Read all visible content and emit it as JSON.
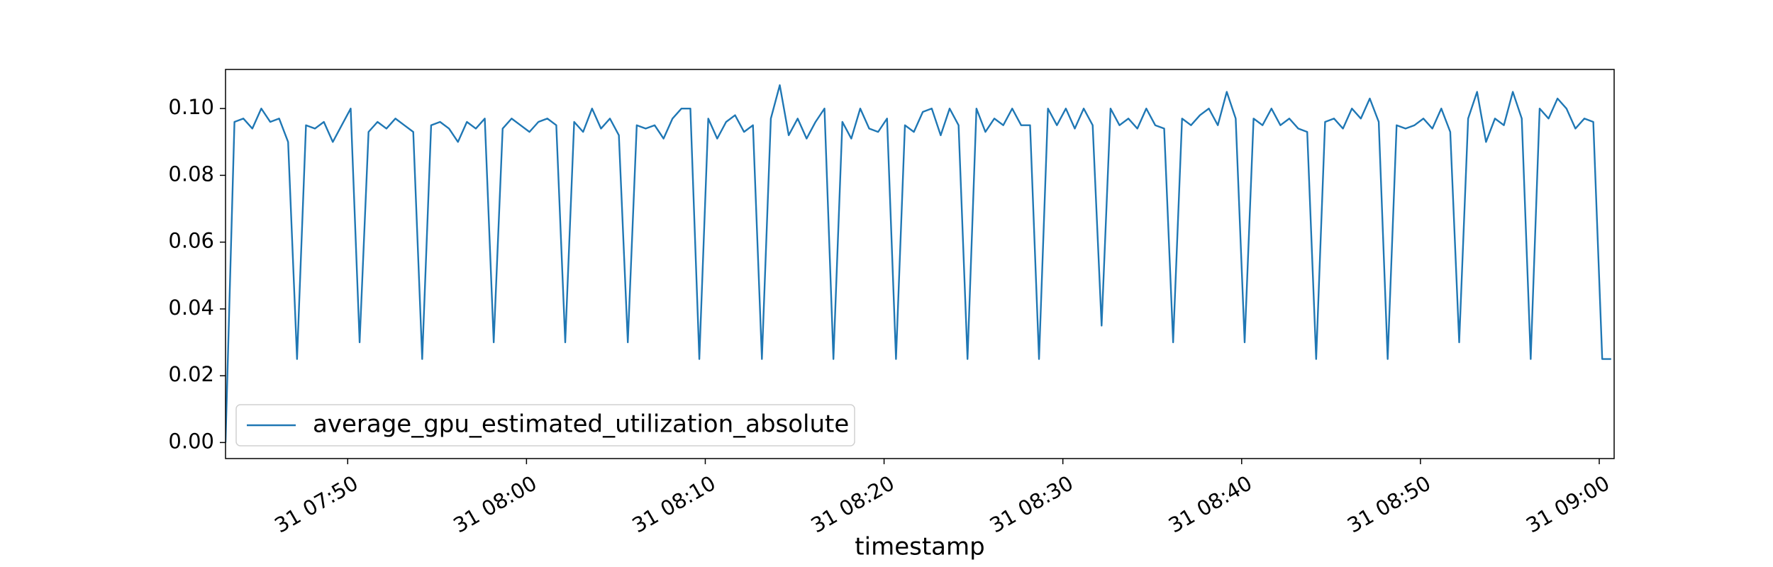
{
  "chart_data": {
    "type": "line",
    "xlabel": "timestamp",
    "x": [
      "31 07:43:10",
      "31 07:43:40",
      "31 07:44:10",
      "31 07:44:40",
      "31 07:45:10",
      "31 07:45:40",
      "31 07:46:10",
      "31 07:46:40",
      "31 07:47:10",
      "31 07:47:40",
      "31 07:48:10",
      "31 07:48:40",
      "31 07:49:10",
      "31 07:49:40",
      "31 07:50:10",
      "31 07:50:40",
      "31 07:51:10",
      "31 07:51:40",
      "31 07:52:10",
      "31 07:52:40",
      "31 07:53:10",
      "31 07:53:40",
      "31 07:54:10",
      "31 07:54:40",
      "31 07:55:10",
      "31 07:55:40",
      "31 07:56:10",
      "31 07:56:40",
      "31 07:57:10",
      "31 07:57:40",
      "31 07:58:10",
      "31 07:58:40",
      "31 07:59:10",
      "31 07:59:40",
      "31 08:00:10",
      "31 08:00:40",
      "31 08:01:10",
      "31 08:01:40",
      "31 08:02:10",
      "31 08:02:40",
      "31 08:03:10",
      "31 08:03:40",
      "31 08:04:10",
      "31 08:04:40",
      "31 08:05:10",
      "31 08:05:40",
      "31 08:06:10",
      "31 08:06:40",
      "31 08:07:10",
      "31 08:07:40",
      "31 08:08:10",
      "31 08:08:40",
      "31 08:09:10",
      "31 08:09:40",
      "31 08:10:10",
      "31 08:10:40",
      "31 08:11:10",
      "31 08:11:40",
      "31 08:12:10",
      "31 08:12:40",
      "31 08:13:10",
      "31 08:13:40",
      "31 08:14:10",
      "31 08:14:40",
      "31 08:15:10",
      "31 08:15:40",
      "31 08:16:10",
      "31 08:16:40",
      "31 08:17:10",
      "31 08:17:40",
      "31 08:18:10",
      "31 08:18:40",
      "31 08:19:10",
      "31 08:19:40",
      "31 08:20:10",
      "31 08:20:40",
      "31 08:21:10",
      "31 08:21:40",
      "31 08:22:10",
      "31 08:22:40",
      "31 08:23:10",
      "31 08:23:40",
      "31 08:24:10",
      "31 08:24:40",
      "31 08:25:10",
      "31 08:25:40",
      "31 08:26:10",
      "31 08:26:40",
      "31 08:27:10",
      "31 08:27:40",
      "31 08:28:10",
      "31 08:28:40",
      "31 08:29:10",
      "31 08:29:40",
      "31 08:30:10",
      "31 08:30:40",
      "31 08:31:10",
      "31 08:31:40",
      "31 08:32:10",
      "31 08:32:40",
      "31 08:33:10",
      "31 08:33:40",
      "31 08:34:10",
      "31 08:34:40",
      "31 08:35:10",
      "31 08:35:40",
      "31 08:36:10",
      "31 08:36:40",
      "31 08:37:10",
      "31 08:37:40",
      "31 08:38:10",
      "31 08:38:40",
      "31 08:39:10",
      "31 08:39:40",
      "31 08:40:10",
      "31 08:40:40",
      "31 08:41:10",
      "31 08:41:40",
      "31 08:42:10",
      "31 08:42:40",
      "31 08:43:10",
      "31 08:43:40",
      "31 08:44:10",
      "31 08:44:40",
      "31 08:45:10",
      "31 08:45:40",
      "31 08:46:10",
      "31 08:46:40",
      "31 08:47:10",
      "31 08:47:40",
      "31 08:48:10",
      "31 08:48:40",
      "31 08:49:10",
      "31 08:49:40",
      "31 08:50:10",
      "31 08:50:40",
      "31 08:51:10",
      "31 08:51:40",
      "31 08:52:10",
      "31 08:52:40",
      "31 08:53:10",
      "31 08:53:40",
      "31 08:54:10",
      "31 08:54:40",
      "31 08:55:10",
      "31 08:55:40",
      "31 08:56:10",
      "31 08:56:40",
      "31 08:57:10",
      "31 08:57:40",
      "31 08:58:10",
      "31 08:58:40",
      "31 08:59:10",
      "31 08:59:40",
      "31 09:00:10",
      "31 09:00:40"
    ],
    "series": [
      {
        "name": "average_gpu_estimated_utilization_absolute",
        "color": "#1f77b4",
        "values": [
          0,
          0.096,
          0.097,
          0.094,
          0.1,
          0.096,
          0.097,
          0.09,
          0.025,
          0.095,
          0.094,
          0.096,
          0.09,
          0.095,
          0.1,
          0.03,
          0.093,
          0.096,
          0.094,
          0.097,
          0.095,
          0.093,
          0.025,
          0.095,
          0.096,
          0.094,
          0.09,
          0.096,
          0.094,
          0.097,
          0.03,
          0.094,
          0.097,
          0.095,
          0.093,
          0.096,
          0.097,
          0.095,
          0.03,
          0.096,
          0.093,
          0.1,
          0.094,
          0.097,
          0.092,
          0.03,
          0.095,
          0.094,
          0.095,
          0.091,
          0.097,
          0.1,
          0.1,
          0.025,
          0.097,
          0.091,
          0.096,
          0.098,
          0.093,
          0.095,
          0.025,
          0.097,
          0.107,
          0.092,
          0.097,
          0.091,
          0.096,
          0.1,
          0.025,
          0.096,
          0.091,
          0.1,
          0.094,
          0.093,
          0.097,
          0.025,
          0.095,
          0.093,
          0.099,
          0.1,
          0.092,
          0.1,
          0.095,
          0.025,
          0.1,
          0.093,
          0.097,
          0.095,
          0.1,
          0.095,
          0.095,
          0.025,
          0.1,
          0.095,
          0.1,
          0.094,
          0.1,
          0.095,
          0.035,
          0.1,
          0.095,
          0.097,
          0.094,
          0.1,
          0.095,
          0.094,
          0.03,
          0.097,
          0.095,
          0.098,
          0.1,
          0.095,
          0.105,
          0.097,
          0.03,
          0.097,
          0.095,
          0.1,
          0.095,
          0.097,
          0.094,
          0.093,
          0.025,
          0.096,
          0.097,
          0.094,
          0.1,
          0.097,
          0.103,
          0.096,
          0.025,
          0.095,
          0.094,
          0.095,
          0.097,
          0.094,
          0.1,
          0.093,
          0.03,
          0.097,
          0.105,
          0.09,
          0.097,
          0.095,
          0.105,
          0.097,
          0.025,
          0.1,
          0.097,
          0.103,
          0.1,
          0.094,
          0.097,
          0.096,
          0.025,
          0.025
        ]
      }
    ],
    "xlim": [
      "31 07:43:10",
      "31 09:00:50"
    ],
    "xticks": [
      "31 07:50",
      "31 08:00",
      "31 08:10",
      "31 08:20",
      "31 08:30",
      "31 08:40",
      "31 08:50",
      "31 09:00"
    ],
    "ylim": [
      -0.0048,
      0.1117
    ],
    "yticks": [
      {
        "value": 0,
        "label": "0.00"
      },
      {
        "value": 0.02,
        "label": "0.02"
      },
      {
        "value": 0.04,
        "label": "0.04"
      },
      {
        "value": 0.06,
        "label": "0.06"
      },
      {
        "value": 0.08,
        "label": "0.08"
      },
      {
        "value": 0.1,
        "label": "0.10"
      }
    ],
    "legend": "lower left"
  }
}
